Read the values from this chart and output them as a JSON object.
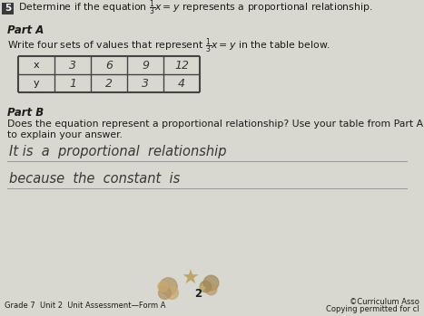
{
  "title_number": "5",
  "title_text": "Determine if the equation $\\frac{1}{3}x = y$ represents a proportional relationship.",
  "part_a_label": "Part A",
  "part_a_text": "Write four sets of values that represent $\\frac{1}{3}x = y$ in the table below.",
  "table_x_row": [
    "x",
    "3",
    "6",
    "9",
    "12"
  ],
  "table_y_row": [
    "y",
    "1",
    "2",
    "3",
    "4"
  ],
  "part_b_label": "Part B",
  "part_b_text1": "Does the equation represent a proportional relationship? Use your table from Part A",
  "part_b_text2": "to explain your answer.",
  "handwritten_line1": "It is  a  proportional  relationship",
  "handwritten_line2": "because  the  constant  is",
  "footer_left": "Grade 7  Unit 2  Unit Assessment—Form A",
  "footer_center": "2",
  "footer_right1": "©Curriculum Asso",
  "footer_right2": "Copying permitted for cl",
  "bg_color": "#d8d8d0",
  "paper_color": "#f4f2ee",
  "text_color": "#1c1c1c",
  "handwriting_color": "#383838",
  "table_border_color": "#444444",
  "line_color": "#999999",
  "number_bg": "#3a3a3a"
}
